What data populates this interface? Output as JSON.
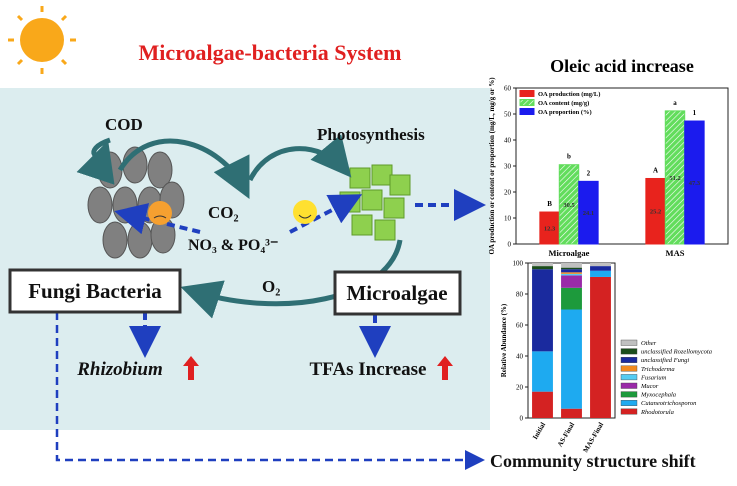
{
  "diagram": {
    "title": "Microalgae-bacteria System",
    "cod": "COD",
    "co2": "CO₂",
    "photosynthesis": "Photosynthesis",
    "nutrients": "NO₃ & PO₄³⁻",
    "o2": "O₂",
    "fungi_bacteria": "Fungi  Bacteria",
    "microalgae": "Microalgae",
    "rhizobium": "Rhizobium",
    "tfas": "TFAs Increase",
    "community": "Community structure shift"
  },
  "chart_data": [
    {
      "type": "bar",
      "title": "Oleic acid increase",
      "y_label": "OA production or content or proportion (mg/L, mg/g or %)",
      "categories": [
        "Microalgae",
        "MAS"
      ],
      "series": [
        {
          "name": "OA production (mg/L)",
          "color": "#e8231d",
          "values": [
            12.3,
            25.2
          ],
          "letters": [
            "B",
            "A"
          ]
        },
        {
          "name": "OA content (mg/g)",
          "color": "#62dd5c",
          "values": [
            30.5,
            51.2
          ],
          "letters": [
            "b",
            "a"
          ]
        },
        {
          "name": "OA proportion (%)",
          "color": "#1b1bee",
          "values": [
            24.1,
            47.3
          ],
          "letters": [
            "2",
            "1"
          ]
        }
      ],
      "ylim": [
        0,
        60
      ],
      "yticks": [
        0,
        10,
        20,
        30,
        40,
        50,
        60
      ]
    },
    {
      "type": "stacked_bar",
      "y_label": "Relative Abundance (%)",
      "categories": [
        "Initial",
        "AS-Final",
        "MAS-Final"
      ],
      "series": [
        {
          "name": "Rhodotorula",
          "color": "#d42222",
          "values": [
            17,
            6,
            91
          ]
        },
        {
          "name": "Cutaneotrichosporon",
          "color": "#1eaaf0",
          "values": [
            26,
            64,
            4
          ]
        },
        {
          "name": "Myxocephala",
          "color": "#1d9a3c",
          "values": [
            0,
            14,
            0
          ]
        },
        {
          "name": "Mucor",
          "color": "#9a2aa8",
          "values": [
            0,
            8,
            0
          ]
        },
        {
          "name": "Fusarium",
          "color": "#55ccf2",
          "values": [
            0,
            1,
            0
          ]
        },
        {
          "name": "Trichoderma",
          "color": "#f08a20",
          "values": [
            0,
            1,
            0
          ]
        },
        {
          "name": "unclassified Fungi",
          "color": "#1a2a9e",
          "values": [
            53,
            2,
            3
          ]
        },
        {
          "name": "unclassified Rozellomycota",
          "color": "#1b4d1b",
          "values": [
            2,
            1,
            0
          ]
        },
        {
          "name": "Other",
          "color": "#c0c0c0",
          "values": [
            2,
            3,
            2
          ]
        }
      ],
      "ylim": [
        0,
        100
      ],
      "yticks": [
        0,
        20,
        40,
        60,
        80,
        100
      ]
    }
  ]
}
